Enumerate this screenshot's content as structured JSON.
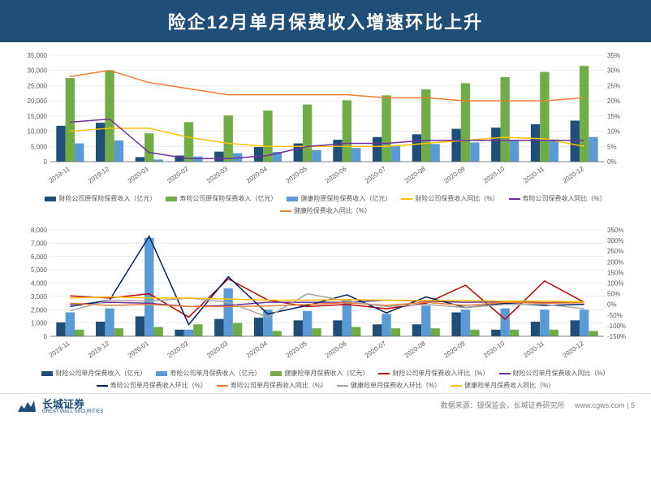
{
  "header": {
    "title": "险企12月单月保费收入增速环比上升"
  },
  "categories": [
    "2019-11",
    "2019-12",
    "2020-01",
    "2020-02",
    "2020-03",
    "2020-04",
    "2020-05",
    "2020-06",
    "2020-07",
    "2020-08",
    "2020-09",
    "2020-10",
    "2020-11",
    "2020-12"
  ],
  "chart1": {
    "ylim": [
      0,
      35000
    ],
    "ytick": 5000,
    "y2lim": [
      0,
      35
    ],
    "y2tick": 5,
    "bars": [
      {
        "name": "财险公司原保险保费收入（亿元）",
        "color": "#1f4e79",
        "values": [
          11800,
          12800,
          1500,
          2000,
          3300,
          4800,
          6000,
          7200,
          8100,
          9000,
          10800,
          11200,
          12300,
          13500
        ]
      },
      {
        "name": "寿险公司原保险保费收入（亿元）",
        "color": "#70ad47",
        "values": [
          27500,
          30000,
          9300,
          13000,
          15200,
          16800,
          18800,
          20200,
          21800,
          23800,
          25800,
          27800,
          29500,
          31500
        ]
      },
      {
        "name": "健康险原保险保费收入（亿元）",
        "color": "#5b9bd5",
        "values": [
          6000,
          7000,
          700,
          1700,
          2800,
          3200,
          3800,
          4500,
          5200,
          5800,
          6300,
          6800,
          7300,
          8100
        ]
      }
    ],
    "lines": [
      {
        "name": "财险公司保费收入同比（%）",
        "color": "#ffc000",
        "values": [
          10,
          11,
          11,
          8,
          6,
          5,
          5,
          5,
          5,
          6,
          7,
          8,
          7.5,
          5
        ]
      },
      {
        "name": "寿险公司保费收入同比（%）",
        "color": "#7030a0",
        "values": [
          13,
          14,
          3,
          1,
          1,
          2,
          5,
          6,
          6,
          7,
          7,
          7,
          7,
          7
        ]
      },
      {
        "name": "健康险保费收入同比（%）",
        "color": "#ed7d31",
        "values": [
          28,
          30,
          26,
          24,
          22,
          22,
          22,
          22,
          21,
          21,
          20,
          20,
          20,
          21
        ]
      }
    ]
  },
  "chart2": {
    "ylim": [
      0,
      8000
    ],
    "ytick": 1000,
    "y2lim": [
      -150,
      350
    ],
    "y2tick": 50,
    "bars": [
      {
        "name": "财险公司单月保费收入（亿元）",
        "color": "#1f4e79",
        "values": [
          1050,
          1100,
          1500,
          500,
          1300,
          1400,
          1200,
          1200,
          900,
          900,
          1800,
          500,
          1100,
          1200
        ]
      },
      {
        "name": "寿险公司单月保费收入（亿元）",
        "color": "#5b9bd5",
        "values": [
          1800,
          2100,
          7400,
          500,
          3600,
          2000,
          1900,
          2800,
          1700,
          2300,
          2000,
          2100,
          2000,
          2000
        ]
      },
      {
        "name": "健康险单月保费收入（亿元）",
        "color": "#70ad47",
        "values": [
          500,
          600,
          700,
          900,
          1000,
          400,
          600,
          700,
          600,
          600,
          500,
          500,
          500,
          400
        ]
      }
    ],
    "lines": [
      {
        "name": "财险公司单月保费收入环比（%）",
        "color": "#c00000",
        "values": [
          40,
          30,
          50,
          -60,
          120,
          20,
          -10,
          0,
          -20,
          5,
          90,
          -70,
          110,
          10
        ]
      },
      {
        "name": "财险公司单月保费收入同比（%）",
        "color": "#7030a0",
        "values": [
          0,
          10,
          5,
          -10,
          -5,
          10,
          10,
          10,
          20,
          15,
          10,
          12,
          8,
          12
        ]
      },
      {
        "name": "寿险公司单月保费收入环比（%）",
        "color": "#002060",
        "values": [
          -10,
          20,
          320,
          -95,
          130,
          -45,
          -5,
          45,
          -40,
          35,
          -15,
          5,
          -5,
          0
        ]
      },
      {
        "name": "寿险公司单月保费收入同比（%）",
        "color": "#ed7d31",
        "values": [
          5,
          -5,
          0,
          -10,
          -10,
          -8,
          0,
          8,
          -5,
          10,
          -5,
          10,
          5,
          8
        ]
      },
      {
        "name": "健康险单月保费收入环比（%）",
        "color": "#a5a5a5",
        "values": [
          -30,
          20,
          15,
          30,
          10,
          -60,
          50,
          15,
          -10,
          0,
          -15,
          0,
          0,
          -20
        ]
      },
      {
        "name": "健康险单月保费收入同比（%）",
        "color": "#ffc000",
        "values": [
          30,
          35,
          30,
          30,
          25,
          20,
          20,
          22,
          20,
          18,
          18,
          15,
          15,
          12
        ]
      }
    ]
  },
  "footer": {
    "logo": "长城证券",
    "logoSub": "GREAT WALL SECURITIES",
    "source": "数据来源：银保监会，长城证券研究所",
    "url": "www.cgws.com",
    "page": "5"
  }
}
